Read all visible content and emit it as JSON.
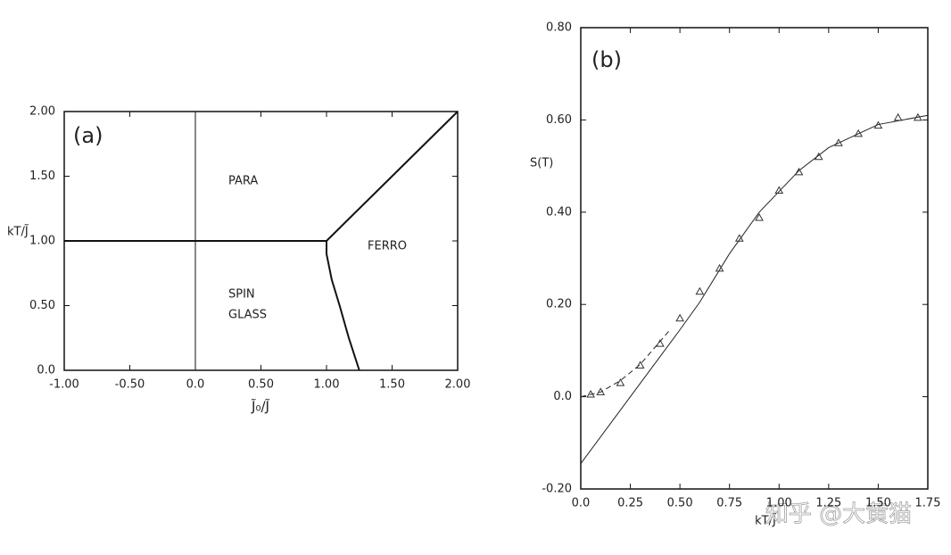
{
  "chart_data": [
    {
      "type": "line",
      "panel_label": "(a)",
      "x_label": "J̃₀/J̃",
      "y_label": "kT/J̃",
      "annotations": [
        "PARA",
        "FERRO",
        "SPIN",
        "GLASS"
      ],
      "xlim": [
        -1,
        2
      ],
      "ylim": [
        0,
        2
      ],
      "xticks": [
        {
          "value": -1,
          "label": "-1.00"
        },
        {
          "value": -0.5,
          "label": "-0.50"
        },
        {
          "value": 0,
          "label": "0.0"
        },
        {
          "value": 0.5,
          "label": "0.50"
        },
        {
          "value": 1,
          "label": "1.00"
        },
        {
          "value": 1.5,
          "label": "1.50"
        },
        {
          "value": 2,
          "label": "2.00"
        }
      ],
      "yticks": [
        {
          "value": 0,
          "label": "0.0"
        },
        {
          "value": 0.5,
          "label": "0.50"
        },
        {
          "value": 1,
          "label": "1.00"
        },
        {
          "value": 1.5,
          "label": "1.50"
        },
        {
          "value": 2,
          "label": "2.00"
        }
      ],
      "series": [
        {
          "color": "#111111",
          "style": "line",
          "width": 2,
          "x": [
            -1,
            1
          ],
          "values": [
            1,
            1
          ]
        },
        {
          "color": "#111111",
          "style": "line",
          "width": 1,
          "x": [
            0,
            0
          ],
          "values": [
            0,
            2
          ]
        },
        {
          "color": "#111111",
          "style": "line",
          "width": 2,
          "x": [
            1,
            2
          ],
          "values": [
            1,
            2
          ]
        },
        {
          "color": "#111111",
          "style": "line",
          "width": 2,
          "x": [
            1,
            1.0,
            1.04,
            1.1,
            1.17,
            1.25
          ],
          "values": [
            1,
            0.9,
            0.7,
            0.5,
            0.25,
            0
          ]
        }
      ]
    },
    {
      "type": "line",
      "panel_label": "(b)",
      "x_label": "kT/J̃",
      "y_label": "S(T)",
      "watermark": "知乎 @大黄猫",
      "xlim": [
        0,
        1.75
      ],
      "ylim": [
        -0.2,
        0.8
      ],
      "xticks": [
        {
          "value": 0,
          "label": "0.0"
        },
        0.25,
        {
          "value": 0.5,
          "label": "0.50"
        },
        0.75,
        {
          "value": 1,
          "label": "1.00"
        },
        1.25,
        {
          "value": 1.5,
          "label": "1.50"
        },
        1.75
      ],
      "yticks": [
        {
          "value": -0.2,
          "label": "-0.20"
        },
        {
          "value": 0,
          "label": "0.0"
        },
        {
          "value": 0.2,
          "label": "0.20"
        },
        {
          "value": 0.4,
          "label": "0.40"
        },
        {
          "value": 0.6,
          "label": "0.60"
        },
        {
          "value": 0.8,
          "label": "0.80"
        }
      ],
      "series": [
        {
          "color": "#222222",
          "style": "line",
          "width": 1,
          "x": [
            0,
            0.25,
            0.5,
            0.6,
            0.75,
            0.9,
            1.0,
            1.1,
            1.25,
            1.5,
            1.75
          ],
          "values": [
            -0.145,
            0.0,
            0.145,
            0.205,
            0.31,
            0.4,
            0.445,
            0.49,
            0.54,
            0.59,
            0.61
          ]
        },
        {
          "color": "#222222",
          "style": "dashed",
          "width": 1,
          "x": [
            0,
            0.1,
            0.2,
            0.3,
            0.4,
            0.45
          ],
          "values": [
            0,
            0.01,
            0.035,
            0.07,
            0.12,
            0.145
          ]
        },
        {
          "color": "#333333",
          "style": "triangles",
          "width": 1,
          "x": [
            0.05,
            0.1,
            0.2,
            0.3,
            0.4,
            0.5,
            0.6,
            0.7,
            0.8,
            0.9,
            1.0,
            1.1,
            1.2,
            1.3,
            1.4,
            1.5,
            1.6,
            1.7
          ],
          "values": [
            0.005,
            0.01,
            0.03,
            0.068,
            0.115,
            0.17,
            0.228,
            0.278,
            0.343,
            0.388,
            0.447,
            0.487,
            0.52,
            0.55,
            0.57,
            0.588,
            0.605,
            0.605
          ]
        }
      ]
    }
  ]
}
